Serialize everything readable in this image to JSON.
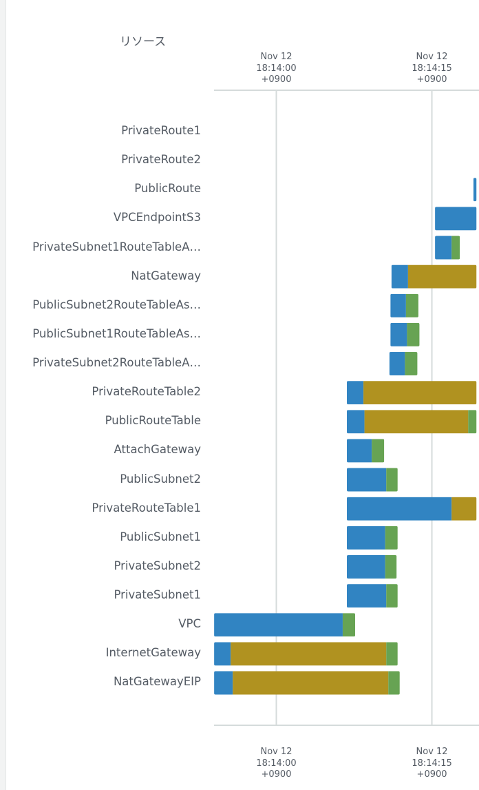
{
  "header": {
    "resources_label": "リソース"
  },
  "chart_data": {
    "type": "gantt",
    "x_axis": {
      "ticks": [
        {
          "date": "Nov 12",
          "time": "18:14:00",
          "tz": "+0900",
          "value": 0
        },
        {
          "date": "Nov 12",
          "time": "18:14:15",
          "tz": "+0900",
          "value": 15
        }
      ],
      "range": [
        -6.0,
        19.3
      ],
      "unit": "seconds after 18:14:00"
    },
    "phase_colors": {
      "phase1": "#3184c2",
      "phase2": "#b09220",
      "phase3": "#67a353"
    },
    "rows": [
      {
        "label": "PrivateRoute1",
        "segments": []
      },
      {
        "label": "PrivateRoute2",
        "segments": []
      },
      {
        "label": "PublicRoute",
        "segments": [
          {
            "phase": "phase1",
            "start": 19.0,
            "end": 19.3
          }
        ]
      },
      {
        "label": "VPCEndpointS3",
        "segments": [
          {
            "phase": "phase1",
            "start": 15.3,
            "end": 19.3
          }
        ]
      },
      {
        "label": "PrivateSubnet1RouteTableA…",
        "segments": [
          {
            "phase": "phase1",
            "start": 15.3,
            "end": 16.9
          },
          {
            "phase": "phase3",
            "start": 16.9,
            "end": 17.7
          }
        ]
      },
      {
        "label": "NatGateway",
        "segments": [
          {
            "phase": "phase1",
            "start": 11.1,
            "end": 12.7
          },
          {
            "phase": "phase2",
            "start": 12.7,
            "end": 19.3
          }
        ]
      },
      {
        "label": "PublicSubnet2RouteTableAs…",
        "segments": [
          {
            "phase": "phase1",
            "start": 11.0,
            "end": 12.5
          },
          {
            "phase": "phase3",
            "start": 12.5,
            "end": 13.7
          }
        ]
      },
      {
        "label": "PublicSubnet1RouteTableAs…",
        "segments": [
          {
            "phase": "phase1",
            "start": 11.0,
            "end": 12.6
          },
          {
            "phase": "phase3",
            "start": 12.6,
            "end": 13.8
          }
        ]
      },
      {
        "label": "PrivateSubnet2RouteTableA…",
        "segments": [
          {
            "phase": "phase1",
            "start": 10.9,
            "end": 12.4
          },
          {
            "phase": "phase3",
            "start": 12.4,
            "end": 13.6
          }
        ]
      },
      {
        "label": "PrivateRouteTable2",
        "segments": [
          {
            "phase": "phase1",
            "start": 6.8,
            "end": 8.4
          },
          {
            "phase": "phase2",
            "start": 8.4,
            "end": 19.3
          }
        ]
      },
      {
        "label": "PublicRouteTable",
        "segments": [
          {
            "phase": "phase1",
            "start": 6.8,
            "end": 8.5
          },
          {
            "phase": "phase2",
            "start": 8.5,
            "end": 18.5
          },
          {
            "phase": "phase3",
            "start": 18.5,
            "end": 19.3
          }
        ]
      },
      {
        "label": "AttachGateway",
        "segments": [
          {
            "phase": "phase1",
            "start": 6.8,
            "end": 9.2
          },
          {
            "phase": "phase3",
            "start": 9.2,
            "end": 10.4
          }
        ]
      },
      {
        "label": "PublicSubnet2",
        "segments": [
          {
            "phase": "phase1",
            "start": 6.8,
            "end": 10.6
          },
          {
            "phase": "phase3",
            "start": 10.6,
            "end": 11.7
          }
        ]
      },
      {
        "label": "PrivateRouteTable1",
        "segments": [
          {
            "phase": "phase1",
            "start": 6.8,
            "end": 16.9
          },
          {
            "phase": "phase2",
            "start": 16.9,
            "end": 19.3
          }
        ]
      },
      {
        "label": "PublicSubnet1",
        "segments": [
          {
            "phase": "phase1",
            "start": 6.8,
            "end": 10.5
          },
          {
            "phase": "phase3",
            "start": 10.5,
            "end": 11.7
          }
        ]
      },
      {
        "label": "PrivateSubnet2",
        "segments": [
          {
            "phase": "phase1",
            "start": 6.8,
            "end": 10.5
          },
          {
            "phase": "phase3",
            "start": 10.5,
            "end": 11.6
          }
        ]
      },
      {
        "label": "PrivateSubnet1",
        "segments": [
          {
            "phase": "phase1",
            "start": 6.8,
            "end": 10.6
          },
          {
            "phase": "phase3",
            "start": 10.6,
            "end": 11.7
          }
        ]
      },
      {
        "label": "VPC",
        "segments": [
          {
            "phase": "phase1",
            "start": -6.0,
            "end": 6.4
          },
          {
            "phase": "phase3",
            "start": 6.4,
            "end": 7.6
          }
        ]
      },
      {
        "label": "InternetGateway",
        "segments": [
          {
            "phase": "phase1",
            "start": -6.0,
            "end": -4.4
          },
          {
            "phase": "phase2",
            "start": -4.4,
            "end": 10.6
          },
          {
            "phase": "phase3",
            "start": 10.6,
            "end": 11.7
          }
        ]
      },
      {
        "label": "NatGatewayEIP",
        "segments": [
          {
            "phase": "phase1",
            "start": -6.0,
            "end": -4.2
          },
          {
            "phase": "phase2",
            "start": -4.2,
            "end": 10.8
          },
          {
            "phase": "phase3",
            "start": 10.8,
            "end": 11.9
          }
        ]
      }
    ]
  }
}
